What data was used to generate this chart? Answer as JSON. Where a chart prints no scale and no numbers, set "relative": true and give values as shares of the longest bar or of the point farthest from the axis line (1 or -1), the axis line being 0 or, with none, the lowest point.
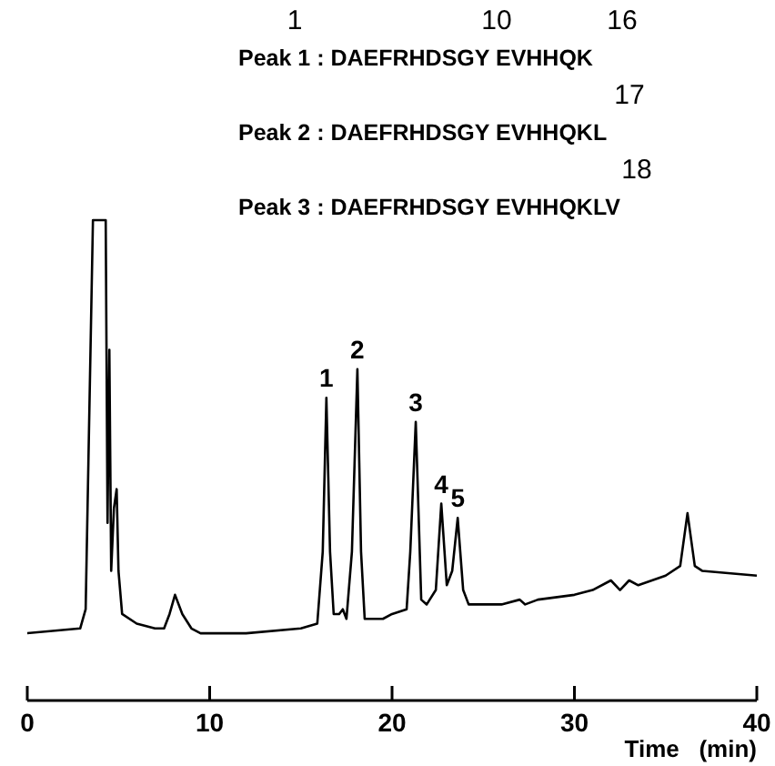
{
  "chart_data": {
    "type": "line",
    "relative": true,
    "xlabel": "Time   (min)",
    "xlim": [
      0,
      40
    ],
    "xticks": [
      0,
      10,
      20,
      30,
      40
    ],
    "color": "#000000",
    "marker": "none",
    "line_style": "solid",
    "grid": false,
    "tick_labels": "x",
    "x": [
      0,
      2.9,
      3.2,
      3.6,
      4.3,
      4.4,
      4.5,
      4.6,
      4.75,
      4.9,
      5.0,
      5.2,
      6,
      7,
      7.5,
      7.8,
      8.1,
      8.5,
      9,
      9.5,
      12,
      15,
      15.9,
      16.2,
      16.4,
      16.6,
      16.8,
      17.1,
      17.3,
      17.5,
      17.8,
      18.1,
      18.3,
      18.5,
      19.5,
      20,
      20.8,
      21.0,
      21.3,
      21.6,
      21.9,
      22.4,
      22.7,
      23.0,
      23.3,
      23.6,
      23.9,
      24.2,
      26,
      27,
      27.3,
      28,
      30,
      31,
      32,
      32.5,
      33,
      33.5,
      35,
      35.8,
      36.2,
      36.6,
      37,
      40
    ],
    "values": [
      0.14,
      0.15,
      0.19,
      1,
      1,
      0.37,
      0.73,
      0.27,
      0.4,
      0.44,
      0.27,
      0.18,
      0.16,
      0.15,
      0.15,
      0.18,
      0.22,
      0.18,
      0.15,
      0.14,
      0.14,
      0.15,
      0.16,
      0.31,
      0.63,
      0.31,
      0.18,
      0.18,
      0.19,
      0.17,
      0.31,
      0.69,
      0.31,
      0.17,
      0.17,
      0.18,
      0.19,
      0.31,
      0.58,
      0.21,
      0.2,
      0.23,
      0.41,
      0.24,
      0.27,
      0.38,
      0.23,
      0.2,
      0.2,
      0.21,
      0.2,
      0.21,
      0.22,
      0.23,
      0.25,
      0.23,
      0.25,
      0.24,
      0.26,
      0.28,
      0.39,
      0.28,
      0.27,
      0.26
    ],
    "annotations": [
      {
        "text": "1",
        "x": 16.4,
        "y": 0.63
      },
      {
        "text": "2",
        "x": 18.1,
        "y": 0.69
      },
      {
        "text": "3",
        "x": 21.3,
        "y": 0.58
      },
      {
        "text": "4",
        "x": 22.7,
        "y": 0.41
      },
      {
        "text": "5",
        "x": 23.6,
        "y": 0.38
      },
      "1",
      "10",
      "16",
      "Peak 1 : DAEFRHDSGY EVHHQK",
      "17",
      "Peak 2 : DAEFRHDSGY EVHHQKL",
      "18",
      "Peak 3 : DAEFRHDSGY EVHHQKLV"
    ]
  }
}
